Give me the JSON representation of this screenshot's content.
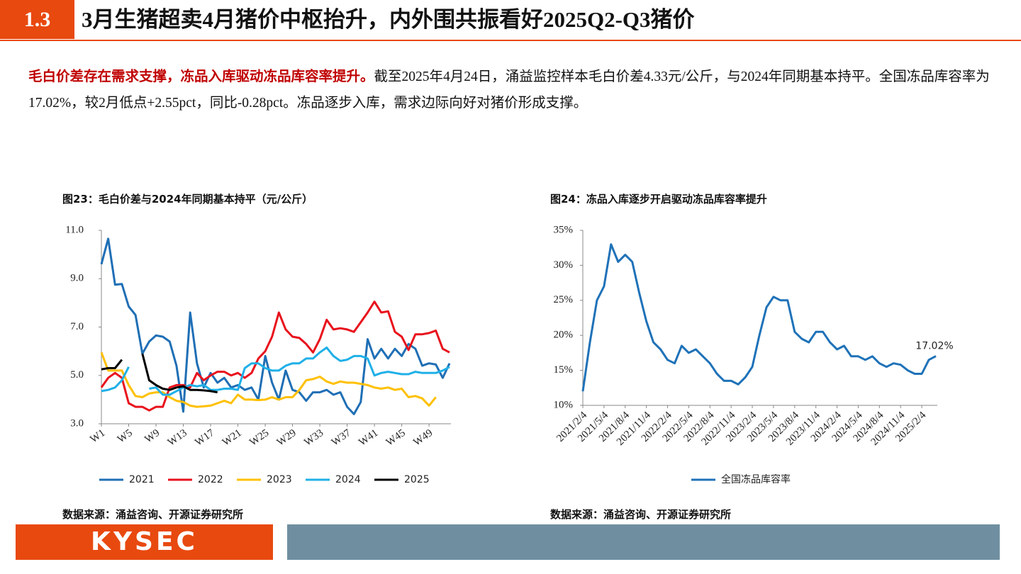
{
  "header": {
    "section": "1.3",
    "title": "3月生猪超卖4月猪价中枢抬升，内外围共振看好2025Q2-Q3猪价"
  },
  "text": {
    "lead": "毛白价差存在需求支撑，冻品入库驱动冻品库容率提升。",
    "body": "截至2025年4月24日，涌益监控样本毛白价差4.33元/公斤，与2024年同期基本持平。全国冻品库容率为17.02%，较2月低点+2.55pct，同比-0.28pct。冻品逐步入库，需求边际向好对猪价形成支撑。"
  },
  "chart_data": [
    {
      "type": "line",
      "title": "图23：毛白价差与2024年同期基本持平（元/公斤）",
      "source": "数据来源：涌益咨询、开源证券研究所",
      "categories": [
        "W1",
        null,
        null,
        null,
        "W5",
        null,
        null,
        null,
        "W9",
        null,
        null,
        null,
        "W13",
        null,
        null,
        null,
        "W17",
        null,
        null,
        null,
        "W21",
        null,
        null,
        null,
        "W25",
        null,
        null,
        null,
        "W29",
        null,
        null,
        null,
        "W33",
        null,
        null,
        null,
        "W37",
        null,
        null,
        null,
        "W41",
        null,
        null,
        null,
        "W45",
        null,
        null,
        null,
        "W49",
        null,
        null,
        null
      ],
      "ylim": [
        3,
        11
      ],
      "yticks": [
        {
          "value": 3,
          "label": "3.0"
        },
        {
          "value": 5,
          "label": "5.0"
        },
        {
          "value": 7,
          "label": "7.0"
        },
        {
          "value": 9,
          "label": "9.0"
        },
        {
          "value": 11,
          "label": "11.0"
        }
      ],
      "legend": "bottom",
      "series": [
        {
          "name": "2021",
          "color": "#1f6fb5",
          "values": [
            9.6,
            10.65,
            8.75,
            8.78,
            7.85,
            7.5,
            5.9,
            6.4,
            6.65,
            6.6,
            6.4,
            5.4,
            3.5,
            7.6,
            5.5,
            4.5,
            5.1,
            4.7,
            4.9,
            4.5,
            4.6,
            4.4,
            4.5,
            4.0,
            5.8,
            4.7,
            4.0,
            5.2,
            4.4,
            4.3,
            3.95,
            4.3,
            4.3,
            4.4,
            4.2,
            4.3,
            3.7,
            3.4,
            3.9,
            6.5,
            5.7,
            6.1,
            5.7,
            6.1,
            5.8,
            6.3,
            6.1,
            5.4,
            5.5,
            5.45,
            4.9,
            5.5
          ]
        },
        {
          "name": "2022",
          "color": "#e8121c",
          "values": [
            4.5,
            4.9,
            5.1,
            4.9,
            3.85,
            3.7,
            3.7,
            3.55,
            3.7,
            3.7,
            4.5,
            4.6,
            4.6,
            4.5,
            5.1,
            4.8,
            5.0,
            5.15,
            5.15,
            5.0,
            5.1,
            4.9,
            5.1,
            5.7,
            6.0,
            6.6,
            7.6,
            6.9,
            6.6,
            6.55,
            6.3,
            5.95,
            6.5,
            7.3,
            6.9,
            6.95,
            6.9,
            6.8,
            7.2,
            7.6,
            8.05,
            7.6,
            7.65,
            6.8,
            6.6,
            6.05,
            6.7,
            6.7,
            6.75,
            6.85,
            6.1,
            5.95
          ]
        },
        {
          "name": "2023",
          "color": "#ffc000",
          "values": [
            5.95,
            5.2,
            5.2,
            5.2,
            4.6,
            4.15,
            4.1,
            4.25,
            4.3,
            4.3,
            4.1,
            3.95,
            3.9,
            3.75,
            3.7,
            3.72,
            3.75,
            3.85,
            3.95,
            3.85,
            4.2,
            4.0,
            4.0,
            3.98,
            4.0,
            4.1,
            4.0,
            4.1,
            4.1,
            4.4,
            4.8,
            4.85,
            4.95,
            4.75,
            4.65,
            4.75,
            4.7,
            4.7,
            4.65,
            4.6,
            4.5,
            4.45,
            4.5,
            4.4,
            4.45,
            4.1,
            4.15,
            4.05,
            3.75,
            4.1,
            null,
            null
          ]
        },
        {
          "name": "2024",
          "color": "#1fb0e8",
          "values": [
            4.35,
            4.4,
            4.5,
            4.8,
            5.35,
            null,
            null,
            4.45,
            4.5,
            4.2,
            4.2,
            4.35,
            4.5,
            4.6,
            4.55,
            4.6,
            4.4,
            4.4,
            4.45,
            4.45,
            4.4,
            5.3,
            5.5,
            5.5,
            5.3,
            5.2,
            5.2,
            5.4,
            5.5,
            5.5,
            5.7,
            5.7,
            5.95,
            6.15,
            5.8,
            5.6,
            5.65,
            5.8,
            5.8,
            5.7,
            5.0,
            5.1,
            5.15,
            5.1,
            5.05,
            5.05,
            5.15,
            5.1,
            5.1,
            5.1,
            5.2,
            5.35
          ]
        },
        {
          "name": "2025",
          "color": "#000000",
          "values": [
            5.25,
            5.3,
            5.3,
            5.65,
            null,
            null,
            5.9,
            4.8,
            4.6,
            4.45,
            4.4,
            4.5,
            4.55,
            4.4,
            4.4,
            4.38,
            4.35,
            4.3,
            null,
            null,
            null,
            null,
            null,
            null,
            null,
            null,
            null,
            null,
            null,
            null,
            null,
            null,
            null,
            null,
            null,
            null,
            null,
            null,
            null,
            null,
            null,
            null,
            null,
            null,
            null,
            null,
            null,
            null,
            null,
            null,
            null,
            null
          ]
        }
      ]
    },
    {
      "type": "line",
      "title": "图24：冻品入库逐步开启驱动冻品库容率提升",
      "source": "数据来源：涌益咨询、开源证券研究所",
      "categories": [
        "2021/2/4",
        null,
        null,
        "2021/5/4",
        null,
        null,
        "2021/8/4",
        null,
        null,
        "2021/11/4",
        null,
        null,
        "2022/2/4",
        null,
        null,
        "2022/5/4",
        null,
        null,
        "2022/8/4",
        null,
        null,
        "2022/11/4",
        null,
        null,
        "2023/2/4",
        null,
        null,
        "2023/5/4",
        null,
        null,
        "2023/8/4",
        null,
        null,
        "2023/11/4",
        null,
        null,
        "2024/2/4",
        null,
        null,
        "2024/5/4",
        null,
        null,
        "2024/8/4",
        null,
        null,
        "2024/11/4",
        null,
        null,
        "2025/2/4",
        null,
        null
      ],
      "ylim": [
        10,
        35
      ],
      "yticks": [
        {
          "value": 10,
          "label": "10%"
        },
        {
          "value": 15,
          "label": "15%"
        },
        {
          "value": 20,
          "label": "20%"
        },
        {
          "value": 25,
          "label": "25%"
        },
        {
          "value": 30,
          "label": "30%"
        },
        {
          "value": 35,
          "label": "35%"
        }
      ],
      "legend": "bottom",
      "series": [
        {
          "name": "全国冻品库容率",
          "color": "#1f72b8",
          "values": [
            12,
            19,
            25,
            27,
            33,
            30.5,
            31.5,
            30.5,
            26,
            22,
            19,
            18,
            16.5,
            16,
            18.5,
            17.5,
            18,
            17,
            16,
            14.5,
            13.5,
            13.5,
            13,
            14,
            15.5,
            20,
            24,
            25.5,
            25,
            25,
            20.5,
            19.5,
            19,
            20.5,
            20.5,
            19,
            18,
            18.5,
            17,
            17,
            16.5,
            17,
            16,
            15.5,
            16,
            15.8,
            15,
            14.5,
            14.5,
            16.5,
            17.02
          ],
          "value_labels": [
            null,
            null,
            null,
            null,
            null,
            null,
            null,
            null,
            null,
            null,
            null,
            null,
            null,
            null,
            null,
            null,
            null,
            null,
            null,
            null,
            null,
            null,
            null,
            null,
            null,
            null,
            null,
            null,
            null,
            null,
            null,
            null,
            null,
            null,
            null,
            null,
            null,
            null,
            null,
            null,
            null,
            null,
            null,
            null,
            null,
            null,
            null,
            null,
            null,
            null,
            "17.02%"
          ]
        }
      ]
    }
  ],
  "footer": {
    "logo": "KYSEC"
  }
}
